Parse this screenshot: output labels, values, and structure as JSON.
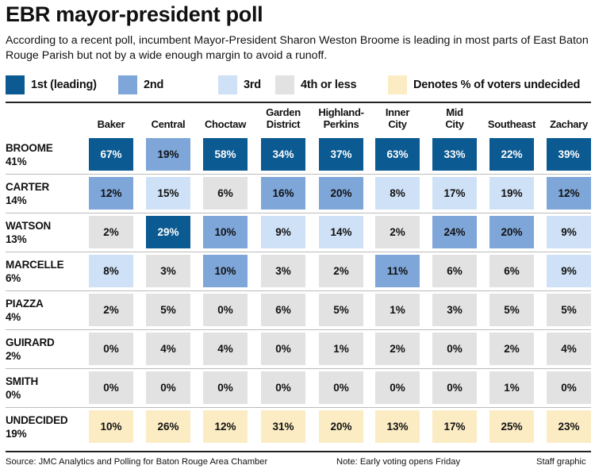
{
  "title": "EBR mayor-president poll",
  "subtitle": "According to a recent poll, incumbent Mayor-President Sharon Weston Broome is leading in most parts of East Baton Rouge Parish but not by a wide enough margin to avoid a runoff.",
  "colors": {
    "first": "#0b5a91",
    "second": "#7ea6d9",
    "third": "#cfe1f6",
    "fourth": "#e2e2e2",
    "undecided": "#fbecc3"
  },
  "legend": [
    {
      "label": "1st (leading)",
      "color_key": "first"
    },
    {
      "label": "2nd",
      "color_key": "second"
    },
    {
      "label": "3rd",
      "color_key": "third"
    },
    {
      "label": "4th or less",
      "color_key": "fourth"
    },
    {
      "label": "Denotes % of voters undecided",
      "color_key": "undecided"
    }
  ],
  "chart_data": {
    "type": "table",
    "columns": [
      "Baker",
      "Central",
      "Choctaw",
      "Garden\nDistrict",
      "Highland-\nPerkins",
      "Inner\nCity",
      "Mid\nCity",
      "Southeast",
      "Zachary"
    ],
    "rows": [
      {
        "name": "BROOME",
        "overall": "41%",
        "values": [
          "67%",
          "19%",
          "58%",
          "34%",
          "37%",
          "63%",
          "33%",
          "22%",
          "39%"
        ],
        "ranks": [
          "first",
          "second",
          "first",
          "first",
          "first",
          "first",
          "first",
          "first",
          "first"
        ]
      },
      {
        "name": "CARTER",
        "overall": "14%",
        "values": [
          "12%",
          "15%",
          "6%",
          "16%",
          "20%",
          "8%",
          "17%",
          "19%",
          "12%"
        ],
        "ranks": [
          "second",
          "third",
          "fourth",
          "second",
          "second",
          "third",
          "third",
          "third",
          "second"
        ]
      },
      {
        "name": "WATSON",
        "overall": "13%",
        "values": [
          "2%",
          "29%",
          "10%",
          "9%",
          "14%",
          "2%",
          "24%",
          "20%",
          "9%"
        ],
        "ranks": [
          "fourth",
          "first",
          "second",
          "third",
          "third",
          "fourth",
          "second",
          "second",
          "third"
        ]
      },
      {
        "name": "MARCELLE",
        "overall": "6%",
        "values": [
          "8%",
          "3%",
          "10%",
          "3%",
          "2%",
          "11%",
          "6%",
          "6%",
          "9%"
        ],
        "ranks": [
          "third",
          "fourth",
          "second",
          "fourth",
          "fourth",
          "second",
          "fourth",
          "fourth",
          "third"
        ]
      },
      {
        "name": "PIAZZA",
        "overall": "4%",
        "values": [
          "2%",
          "5%",
          "0%",
          "6%",
          "5%",
          "1%",
          "3%",
          "5%",
          "5%"
        ],
        "ranks": [
          "fourth",
          "fourth",
          "fourth",
          "fourth",
          "fourth",
          "fourth",
          "fourth",
          "fourth",
          "fourth"
        ]
      },
      {
        "name": "GUIRARD",
        "overall": "2%",
        "values": [
          "0%",
          "4%",
          "4%",
          "0%",
          "1%",
          "2%",
          "0%",
          "2%",
          "4%"
        ],
        "ranks": [
          "fourth",
          "fourth",
          "fourth",
          "fourth",
          "fourth",
          "fourth",
          "fourth",
          "fourth",
          "fourth"
        ]
      },
      {
        "name": "SMITH",
        "overall": "0%",
        "values": [
          "0%",
          "0%",
          "0%",
          "0%",
          "0%",
          "0%",
          "0%",
          "1%",
          "0%"
        ],
        "ranks": [
          "fourth",
          "fourth",
          "fourth",
          "fourth",
          "fourth",
          "fourth",
          "fourth",
          "fourth",
          "fourth"
        ]
      },
      {
        "name": "UNDECIDED",
        "overall": "19%",
        "values": [
          "10%",
          "26%",
          "12%",
          "31%",
          "20%",
          "13%",
          "17%",
          "25%",
          "23%"
        ],
        "ranks": [
          "undecided",
          "undecided",
          "undecided",
          "undecided",
          "undecided",
          "undecided",
          "undecided",
          "undecided",
          "undecided"
        ]
      }
    ]
  },
  "footer": {
    "source": "Source: JMC Analytics and Polling for Baton Rouge Area Chamber",
    "note": "Note: Early voting opens Friday",
    "credit": "Staff graphic"
  }
}
